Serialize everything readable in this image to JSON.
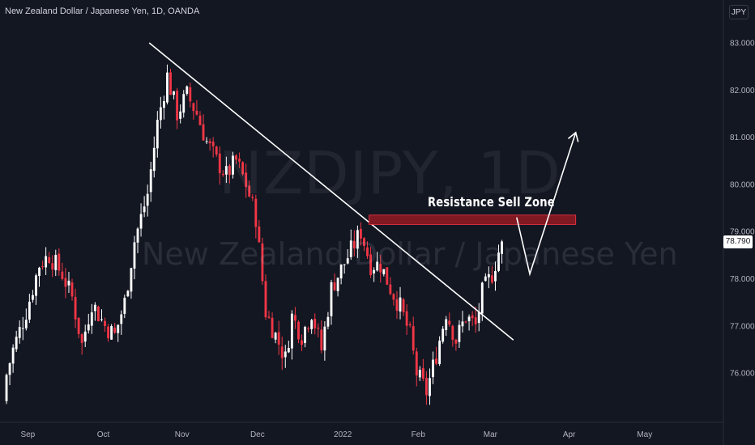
{
  "header": {
    "title": "New Zealand Dollar / Japanese Yen, 1D, OANDA",
    "currency_badge": "JPY"
  },
  "watermark": {
    "symbol": "NZDJPY, 1D",
    "description": "New Zealand Dollar / Japanese Yen"
  },
  "annotation": {
    "zone_label": "Resistance Sell Zone"
  },
  "last_price": "78.790",
  "colors": {
    "background": "#131722",
    "up_candle": "#ffffff",
    "down_candle": "#f23645",
    "zone_fill": "#801922",
    "text": "#d1d4dc"
  },
  "chart_data": {
    "type": "candlestick",
    "symbol": "NZDJPY",
    "interval": "1D",
    "source": "OANDA",
    "y_axis": {
      "min": 75.2,
      "max": 83.2,
      "ticks": [
        "83.000",
        "82.000",
        "81.000",
        "80.000",
        "79.000",
        "78.000",
        "77.000",
        "76.000"
      ]
    },
    "x_axis": {
      "labels": [
        "Sep",
        "Oct",
        "Nov",
        "Dec",
        "2022",
        "Feb",
        "Mar",
        "Apr",
        "May"
      ]
    },
    "last_price": 78.79,
    "price_waypoints": [
      [
        0,
        75.7
      ],
      [
        3,
        76.5
      ],
      [
        7,
        77.3
      ],
      [
        11,
        78.3
      ],
      [
        14,
        78.5
      ],
      [
        18,
        78.1
      ],
      [
        21,
        77.6
      ],
      [
        24,
        76.6
      ],
      [
        27,
        77.5
      ],
      [
        31,
        77.0
      ],
      [
        34,
        76.8
      ],
      [
        37,
        77.5
      ],
      [
        40,
        78.8
      ],
      [
        44,
        79.8
      ],
      [
        47,
        81.3
      ],
      [
        50,
        82.3
      ],
      [
        53,
        81.5
      ],
      [
        56,
        81.9
      ],
      [
        59,
        81.5
      ],
      [
        62,
        80.9
      ],
      [
        65,
        80.5
      ],
      [
        68,
        80.2
      ],
      [
        71,
        80.5
      ],
      [
        74,
        80.0
      ],
      [
        77,
        79.3
      ],
      [
        80,
        77.3
      ],
      [
        83,
        76.8
      ],
      [
        86,
        76.3
      ],
      [
        88,
        77.2
      ],
      [
        91,
        76.8
      ],
      [
        94,
        77.3
      ],
      [
        97,
        76.5
      ],
      [
        100,
        77.8
      ],
      [
        103,
        78.2
      ],
      [
        106,
        78.6
      ],
      [
        109,
        79.0
      ],
      [
        112,
        78.3
      ],
      [
        115,
        78.3
      ],
      [
        118,
        77.8
      ],
      [
        121,
        77.4
      ],
      [
        124,
        76.8
      ],
      [
        126,
        76.0
      ],
      [
        129,
        75.6
      ],
      [
        132,
        76.4
      ],
      [
        135,
        77.3
      ],
      [
        138,
        76.7
      ],
      [
        141,
        77.2
      ],
      [
        144,
        77.0
      ],
      [
        146,
        77.7
      ],
      [
        149,
        78.1
      ],
      [
        152,
        78.8
      ]
    ],
    "bar_count": 152,
    "trendline": {
      "from": {
        "bar": 44,
        "price": 83.0
      },
      "to": {
        "bar": 155,
        "price": 76.7
      }
    },
    "resistance_zone": {
      "from_bar": 111,
      "to_bar": 174,
      "low": 79.15,
      "high": 79.35,
      "label": "Resistance Sell Zone"
    },
    "projection_path": [
      {
        "bar": 156,
        "price": 79.3
      },
      {
        "bar": 160,
        "price": 78.1
      },
      {
        "bar": 174,
        "price": 81.1
      }
    ]
  }
}
